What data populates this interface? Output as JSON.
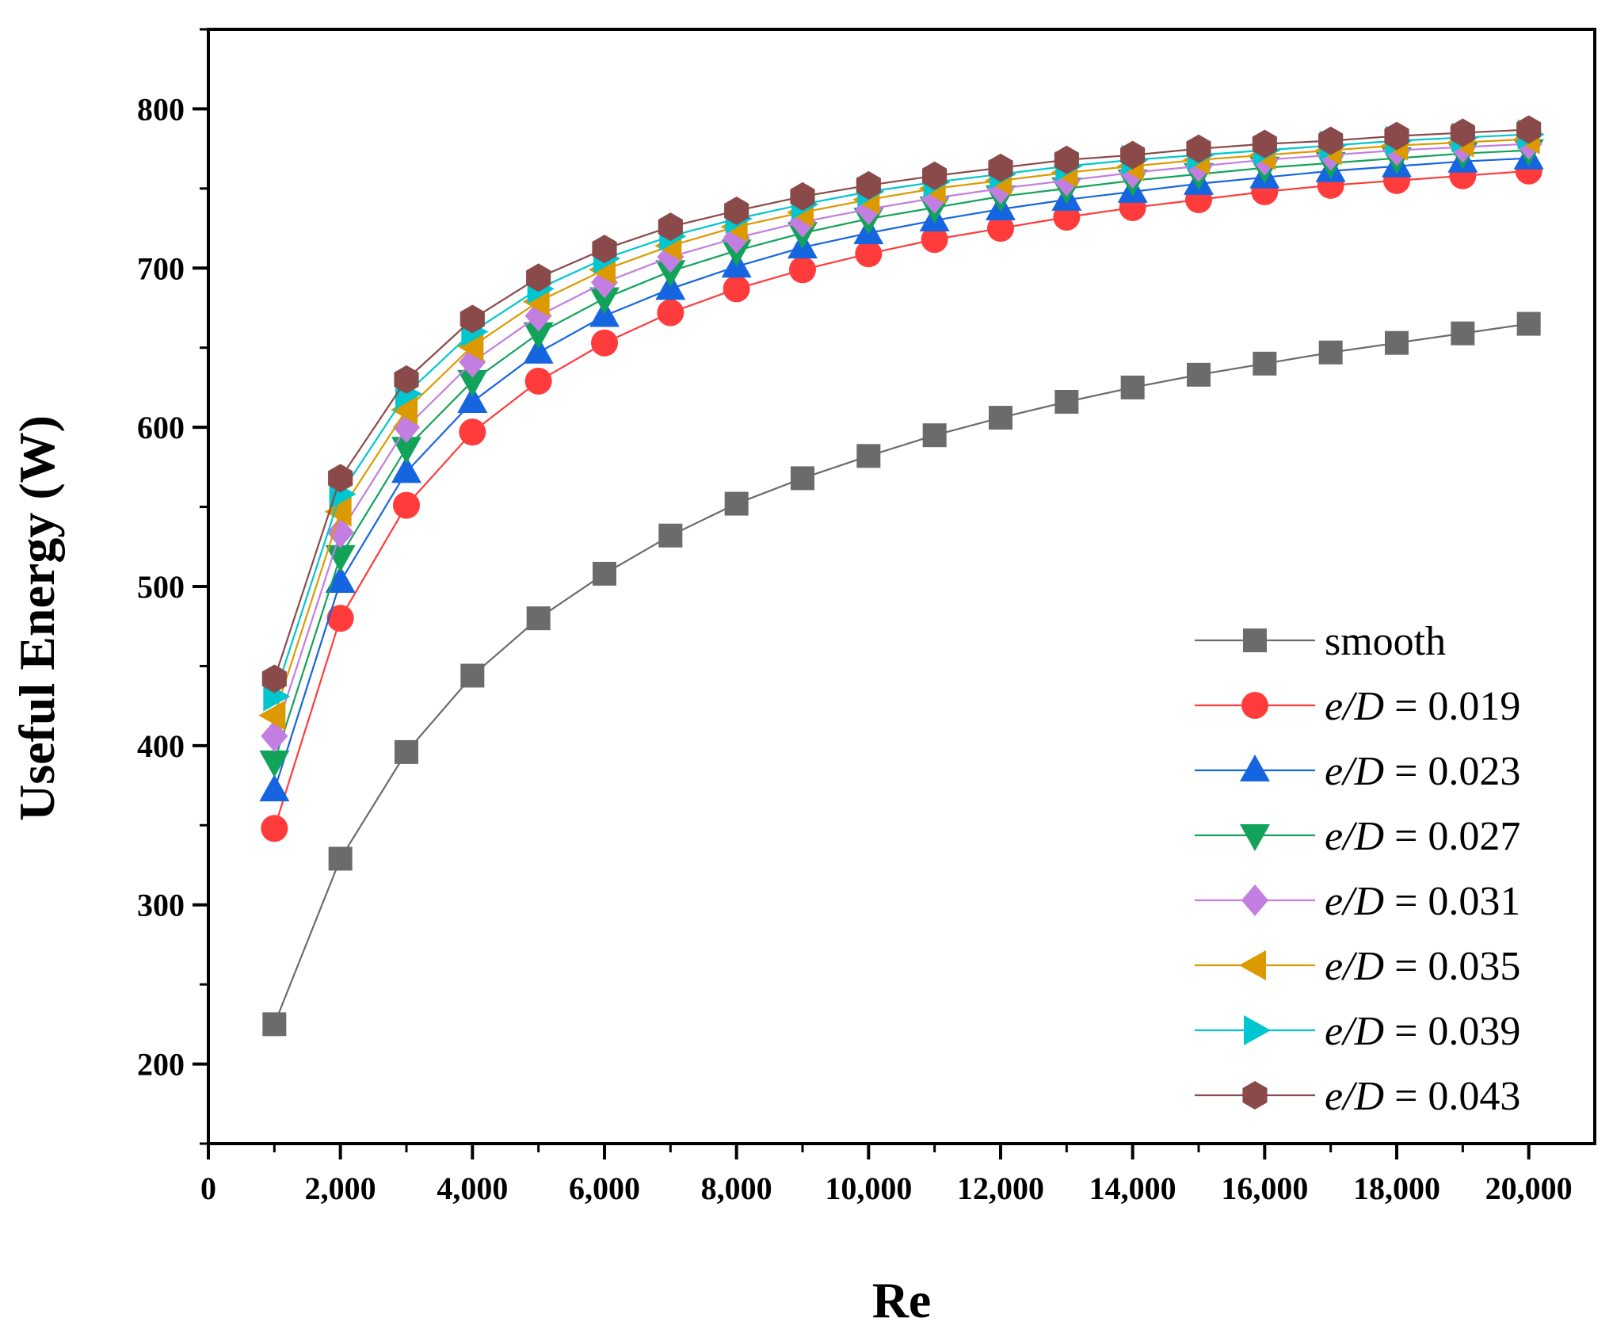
{
  "chart_data": {
    "type": "line",
    "title": "",
    "xlabel": "Re",
    "ylabel": "Useful Energy (W)",
    "xlim": [
      0,
      21000
    ],
    "ylim": [
      150,
      850
    ],
    "x_ticks": [
      0,
      2000,
      4000,
      6000,
      8000,
      10000,
      12000,
      14000,
      16000,
      18000,
      20000
    ],
    "x_tick_labels": [
      "0",
      "2,000",
      "4,000",
      "6,000",
      "8,000",
      "10,000",
      "12,000",
      "14,000",
      "16,000",
      "18,000",
      "20,000"
    ],
    "y_ticks": [
      200,
      300,
      400,
      500,
      600,
      700,
      800
    ],
    "y_tick_labels": [
      "200",
      "300",
      "400",
      "500",
      "600",
      "700",
      "800"
    ],
    "grid": false,
    "legend_position": "bottom-right",
    "x": [
      1000,
      2000,
      3000,
      4000,
      5000,
      6000,
      7000,
      8000,
      9000,
      10000,
      11000,
      12000,
      13000,
      14000,
      15000,
      16000,
      17000,
      18000,
      19000,
      20000
    ],
    "series": [
      {
        "name": "smooth",
        "label_prefix": "",
        "label_value": "smooth",
        "color": "#6b6b6b",
        "marker": "square",
        "values": [
          225,
          329,
          396,
          444,
          480,
          508,
          532,
          552,
          568,
          582,
          595,
          606,
          616,
          625,
          633,
          640,
          647,
          653,
          659,
          665
        ]
      },
      {
        "name": "e/D = 0.019",
        "label_prefix": "e/D",
        "label_value": " = 0.019",
        "color": "#ff3b3b",
        "marker": "circle",
        "values": [
          348,
          480,
          551,
          597,
          629,
          653,
          672,
          687,
          699,
          709,
          718,
          725,
          732,
          738,
          743,
          748,
          752,
          755,
          758,
          761
        ]
      },
      {
        "name": "e/D = 0.023",
        "label_prefix": "e/D",
        "label_value": " = 0.023",
        "color": "#1565e0",
        "marker": "triangle-up",
        "values": [
          372,
          503,
          572,
          616,
          647,
          670,
          687,
          701,
          713,
          722,
          730,
          737,
          743,
          748,
          753,
          757,
          761,
          764,
          767,
          769
        ]
      },
      {
        "name": "e/D = 0.027",
        "label_prefix": "e/D",
        "label_value": " = 0.027",
        "color": "#11a35a",
        "marker": "triangle-down",
        "values": [
          390,
          519,
          587,
          629,
          659,
          681,
          698,
          711,
          722,
          731,
          738,
          745,
          750,
          755,
          759,
          763,
          766,
          769,
          772,
          774
        ]
      },
      {
        "name": "e/D = 0.031",
        "label_prefix": "e/D",
        "label_value": " = 0.031",
        "color": "#c27ee0",
        "marker": "diamond",
        "values": [
          406,
          534,
          600,
          641,
          670,
          691,
          707,
          719,
          729,
          737,
          744,
          750,
          755,
          760,
          764,
          768,
          771,
          774,
          776,
          778
        ]
      },
      {
        "name": "e/D = 0.035",
        "label_prefix": "e/D",
        "label_value": " = 0.035",
        "color": "#dc9a00",
        "marker": "triangle-left",
        "values": [
          419,
          547,
          611,
          651,
          679,
          699,
          714,
          726,
          735,
          743,
          750,
          755,
          760,
          764,
          768,
          771,
          774,
          777,
          779,
          781
        ]
      },
      {
        "name": "e/D = 0.039",
        "label_prefix": "e/D",
        "label_value": " = 0.039",
        "color": "#00c6cf",
        "marker": "triangle-right",
        "values": [
          431,
          558,
          621,
          660,
          687,
          706,
          720,
          731,
          740,
          748,
          754,
          759,
          764,
          768,
          771,
          774,
          777,
          780,
          782,
          784
        ]
      },
      {
        "name": "e/D = 0.043",
        "label_prefix": "e/D",
        "label_value": " = 0.043",
        "color": "#8b4a4a",
        "marker": "hexagon",
        "values": [
          442,
          568,
          630,
          668,
          694,
          712,
          726,
          736,
          745,
          752,
          758,
          763,
          768,
          771,
          775,
          778,
          780,
          783,
          785,
          787
        ]
      }
    ]
  }
}
